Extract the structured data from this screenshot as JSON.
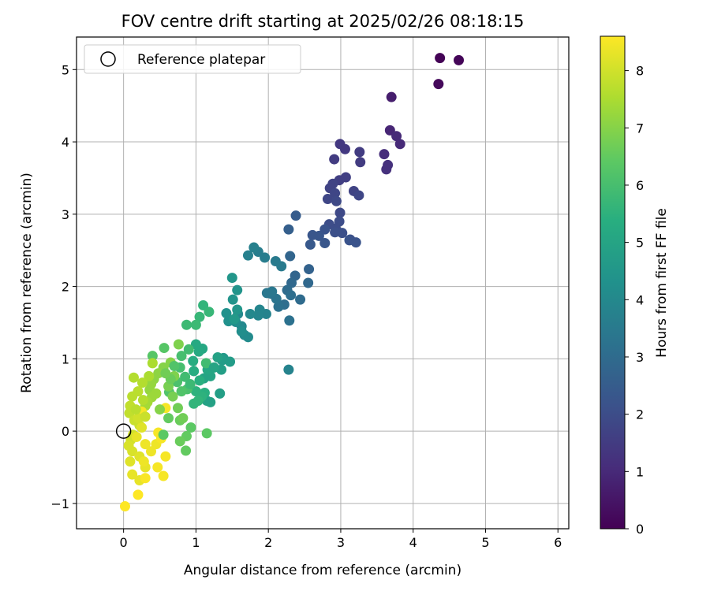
{
  "chart_data": {
    "type": "scatter",
    "title": "FOV centre drift starting at 2025/02/26 08:18:15",
    "xlabel": "Angular distance from reference (arcmin)",
    "ylabel": "Rotation from reference (arcmin)",
    "xlim": [
      -0.65,
      6.15
    ],
    "ylim": [
      -1.35,
      5.45
    ],
    "xticks": [
      0,
      1,
      2,
      3,
      4,
      5,
      6
    ],
    "yticks": [
      -1,
      0,
      1,
      2,
      3,
      4,
      5
    ],
    "xtick_labels": [
      "0",
      "1",
      "2",
      "3",
      "4",
      "5",
      "6"
    ],
    "ytick_labels": [
      "−1",
      "0",
      "1",
      "2",
      "3",
      "4",
      "5"
    ],
    "grid": true,
    "legend": {
      "placement": "top-left",
      "entries": [
        "Reference platepar"
      ]
    },
    "reference_point": {
      "x": 0,
      "y": 0
    },
    "colorbar": {
      "label": "Hours from first FF file",
      "colormap": "viridis",
      "range": [
        0,
        8.6
      ],
      "ticks": [
        0,
        1,
        2,
        3,
        4,
        5,
        6,
        7,
        8
      ],
      "tick_labels": [
        "0",
        "1",
        "2",
        "3",
        "4",
        "5",
        "6",
        "7",
        "8"
      ]
    },
    "points": [
      [
        4.37,
        5.16,
        0.05
      ],
      [
        4.63,
        5.13,
        0.1
      ],
      [
        4.35,
        4.8,
        0.2
      ],
      [
        3.7,
        4.62,
        0.7
      ],
      [
        3.68,
        4.16,
        0.9
      ],
      [
        3.77,
        4.08,
        1.0
      ],
      [
        3.82,
        3.97,
        1.0
      ],
      [
        3.6,
        3.83,
        1.1
      ],
      [
        3.65,
        3.68,
        1.2
      ],
      [
        3.63,
        3.62,
        1.2
      ],
      [
        2.99,
        3.97,
        1.4
      ],
      [
        3.06,
        3.9,
        1.4
      ],
      [
        3.26,
        3.86,
        1.5
      ],
      [
        2.91,
        3.76,
        1.5
      ],
      [
        3.27,
        3.72,
        1.5
      ],
      [
        3.07,
        3.51,
        1.6
      ],
      [
        2.98,
        3.47,
        1.6
      ],
      [
        2.89,
        3.42,
        1.7
      ],
      [
        2.85,
        3.36,
        1.7
      ],
      [
        3.18,
        3.32,
        1.7
      ],
      [
        3.25,
        3.26,
        1.8
      ],
      [
        2.92,
        3.29,
        1.8
      ],
      [
        2.82,
        3.21,
        1.8
      ],
      [
        2.94,
        3.18,
        1.9
      ],
      [
        2.99,
        3.02,
        1.9
      ],
      [
        2.98,
        2.9,
        2.0
      ],
      [
        2.84,
        2.86,
        2.0
      ],
      [
        2.93,
        2.8,
        2.0
      ],
      [
        2.92,
        2.75,
        2.1
      ],
      [
        3.02,
        2.74,
        2.1
      ],
      [
        3.13,
        2.65,
        2.1
      ],
      [
        3.12,
        2.64,
        2.2
      ],
      [
        3.21,
        2.61,
        2.2
      ],
      [
        2.78,
        2.79,
        2.2
      ],
      [
        2.7,
        2.7,
        2.3
      ],
      [
        2.78,
        2.6,
        2.3
      ],
      [
        2.61,
        2.71,
        2.3
      ],
      [
        2.58,
        2.58,
        2.4
      ],
      [
        2.38,
        2.98,
        2.5
      ],
      [
        2.28,
        2.79,
        2.6
      ],
      [
        2.56,
        2.24,
        2.7
      ],
      [
        2.3,
        2.42,
        2.8
      ],
      [
        2.37,
        2.15,
        2.8
      ],
      [
        2.32,
        2.05,
        2.9
      ],
      [
        2.55,
        2.05,
        2.9
      ],
      [
        2.26,
        1.95,
        3.0
      ],
      [
        2.44,
        1.82,
        3.0
      ],
      [
        2.31,
        1.88,
        3.1
      ],
      [
        2.22,
        1.75,
        3.1
      ],
      [
        2.29,
        1.53,
        3.2
      ],
      [
        2.14,
        1.72,
        3.2
      ],
      [
        2.11,
        1.83,
        3.3
      ],
      [
        2.04,
        1.9,
        3.3
      ],
      [
        1.98,
        1.91,
        3.4
      ],
      [
        2.05,
        1.93,
        3.4
      ],
      [
        2.18,
        2.28,
        3.5
      ],
      [
        2.1,
        2.35,
        3.5
      ],
      [
        1.95,
        2.4,
        3.6
      ],
      [
        1.86,
        2.48,
        3.6
      ],
      [
        1.8,
        2.54,
        3.7
      ],
      [
        1.72,
        2.43,
        3.7
      ],
      [
        2.28,
        0.85,
        3.8
      ],
      [
        1.97,
        1.62,
        3.8
      ],
      [
        1.88,
        1.68,
        3.9
      ],
      [
        1.86,
        1.6,
        3.9
      ],
      [
        1.75,
        1.62,
        4.0
      ],
      [
        1.58,
        1.62,
        4.0
      ],
      [
        1.63,
        1.45,
        4.0
      ],
      [
        1.72,
        1.3,
        4.1
      ],
      [
        1.67,
        1.33,
        4.1
      ],
      [
        1.63,
        1.38,
        4.2
      ],
      [
        1.55,
        1.51,
        4.2
      ],
      [
        1.45,
        1.52,
        4.3
      ],
      [
        1.42,
        1.63,
        4.3
      ],
      [
        1.51,
        1.82,
        4.4
      ],
      [
        1.57,
        1.95,
        4.4
      ],
      [
        1.5,
        2.12,
        4.5
      ],
      [
        1.57,
        1.68,
        4.5
      ],
      [
        1.53,
        1.55,
        4.6
      ],
      [
        1.38,
        1.01,
        4.6
      ],
      [
        1.36,
        0.98,
        4.7
      ],
      [
        1.47,
        0.96,
        4.7
      ],
      [
        1.35,
        0.85,
        4.8
      ],
      [
        1.33,
        0.52,
        4.8
      ],
      [
        1.15,
        0.42,
        4.9
      ],
      [
        1.2,
        0.4,
        4.9
      ],
      [
        1.2,
        0.76,
        5.0
      ],
      [
        1.11,
        0.73,
        5.0
      ],
      [
        1.16,
        0.85,
        5.1
      ],
      [
        1.09,
        1.14,
        5.1
      ],
      [
        1.0,
        1.2,
        5.2
      ],
      [
        1.04,
        1.1,
        5.2
      ],
      [
        0.96,
        0.97,
        5.3
      ],
      [
        0.97,
        0.83,
        5.3
      ],
      [
        1.05,
        0.7,
        5.4
      ],
      [
        1.12,
        0.53,
        5.4
      ],
      [
        1.08,
        0.48,
        5.5
      ],
      [
        1.0,
        0.55,
        5.5
      ],
      [
        1.03,
        0.42,
        5.6
      ],
      [
        0.97,
        0.38,
        5.6
      ],
      [
        1.1,
        1.74,
        5.6
      ],
      [
        1.18,
        1.65,
        5.7
      ],
      [
        1.05,
        1.58,
        5.7
      ],
      [
        1.0,
        1.47,
        5.8
      ],
      [
        0.87,
        1.47,
        5.8
      ],
      [
        1.14,
        0.94,
        5.9
      ],
      [
        0.9,
        1.13,
        5.9
      ],
      [
        0.8,
        1.04,
        6.0
      ],
      [
        0.78,
        0.88,
        6.0
      ],
      [
        0.74,
        0.68,
        6.1
      ],
      [
        0.88,
        0.58,
        6.1
      ],
      [
        0.8,
        0.55,
        6.2
      ],
      [
        0.63,
        0.54,
        6.2
      ],
      [
        0.56,
        1.15,
        6.3
      ],
      [
        0.4,
        1.04,
        6.3
      ],
      [
        1.15,
        -0.03,
        6.4
      ],
      [
        0.93,
        0.05,
        6.4
      ],
      [
        0.87,
        -0.07,
        6.5
      ],
      [
        0.86,
        -0.27,
        6.5
      ],
      [
        0.78,
        -0.14,
        6.6
      ],
      [
        0.78,
        0.15,
        6.6
      ],
      [
        0.82,
        0.18,
        6.7
      ],
      [
        0.75,
        0.32,
        6.7
      ],
      [
        0.68,
        0.48,
        6.8
      ],
      [
        0.62,
        0.62,
        6.8
      ],
      [
        0.7,
        0.76,
        6.9
      ],
      [
        0.76,
        1.2,
        6.9
      ],
      [
        0.65,
        0.95,
        7.0
      ],
      [
        0.55,
        0.88,
        7.0
      ],
      [
        0.48,
        0.8,
        7.1
      ],
      [
        0.42,
        0.72,
        7.1
      ],
      [
        0.38,
        0.65,
        7.2
      ],
      [
        0.36,
        0.57,
        7.2
      ],
      [
        0.45,
        0.52,
        7.3
      ],
      [
        0.39,
        0.47,
        7.3
      ],
      [
        0.33,
        0.4,
        7.4
      ],
      [
        0.3,
        0.35,
        7.4
      ],
      [
        0.35,
        0.76,
        7.5
      ],
      [
        0.4,
        0.94,
        7.5
      ],
      [
        0.26,
        0.67,
        7.6
      ],
      [
        0.14,
        0.74,
        7.6
      ],
      [
        0.2,
        0.55,
        7.7
      ],
      [
        0.12,
        0.48,
        7.7
      ],
      [
        0.09,
        0.35,
        7.8
      ],
      [
        0.08,
        0.25,
        7.8
      ],
      [
        0.15,
        0.15,
        7.9
      ],
      [
        0.22,
        0.08,
        7.9
      ],
      [
        0.13,
        -0.05,
        8.0
      ],
      [
        0.1,
        -0.12,
        8.0
      ],
      [
        0.07,
        -0.2,
        8.1
      ],
      [
        0.12,
        -0.28,
        8.1
      ],
      [
        0.22,
        -0.35,
        8.2
      ],
      [
        0.09,
        -0.42,
        8.2
      ],
      [
        0.12,
        -0.6,
        8.3
      ],
      [
        0.22,
        -0.68,
        8.3
      ],
      [
        0.3,
        -0.5,
        8.3
      ],
      [
        0.28,
        -0.42,
        8.4
      ],
      [
        0.38,
        -0.28,
        8.4
      ],
      [
        0.45,
        -0.18,
        8.4
      ],
      [
        0.52,
        -0.1,
        8.5
      ],
      [
        0.48,
        -0.02,
        8.5
      ],
      [
        0.58,
        -0.35,
        8.5
      ],
      [
        0.47,
        -0.5,
        8.5
      ],
      [
        0.55,
        -0.62,
        8.5
      ],
      [
        0.25,
        0.27,
        8.5
      ],
      [
        0.58,
        0.32,
        8.5
      ],
      [
        0.3,
        -0.65,
        8.55
      ],
      [
        0.2,
        -0.88,
        8.6
      ],
      [
        0.02,
        -1.04,
        8.6
      ],
      [
        0.3,
        -0.18,
        8.4
      ],
      [
        0.18,
        -0.08,
        8.3
      ],
      [
        0.25,
        0.05,
        8.2
      ],
      [
        0.2,
        0.18,
        8.0
      ],
      [
        0.3,
        0.2,
        7.9
      ],
      [
        0.17,
        0.3,
        7.7
      ],
      [
        0.27,
        0.43,
        7.6
      ],
      [
        0.5,
        0.3,
        7.0
      ],
      [
        0.62,
        0.18,
        6.5
      ],
      [
        0.55,
        -0.05,
        6.4
      ],
      [
        0.65,
        0.72,
        6.6
      ],
      [
        0.58,
        0.8,
        6.7
      ],
      [
        0.7,
        0.9,
        6.2
      ],
      [
        0.85,
        0.75,
        5.9
      ],
      [
        0.92,
        0.65,
        5.8
      ],
      [
        1.25,
        0.88,
        5.0
      ],
      [
        1.3,
        1.02,
        4.9
      ]
    ]
  }
}
